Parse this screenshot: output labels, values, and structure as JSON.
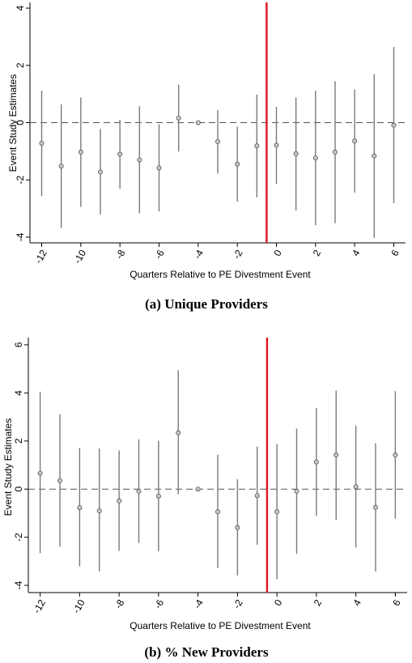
{
  "chart_data": [
    {
      "type": "scatter",
      "caption": "(a) Unique Providers",
      "xlabel": "Quarters Relative to PE Divestment Event",
      "ylabel": "Event Study Estimates",
      "xlim": [
        -12.6,
        6.6
      ],
      "ylim": [
        -4.2,
        4.2
      ],
      "xticks": [
        -12,
        -10,
        -8,
        -6,
        -4,
        -2,
        0,
        2,
        4,
        6
      ],
      "yticks": [
        -4,
        -2,
        0,
        2,
        4
      ],
      "grid": false,
      "zero_line": 0,
      "event_line_x": -0.5,
      "event_line_color": "#e0141c",
      "points": [
        {
          "x": -12,
          "y": -0.72,
          "lo": -2.56,
          "hi": 1.12
        },
        {
          "x": -11,
          "y": -1.52,
          "lo": -3.68,
          "hi": 0.64
        },
        {
          "x": -10,
          "y": -1.03,
          "lo": -2.94,
          "hi": 0.88
        },
        {
          "x": -9,
          "y": -1.72,
          "lo": -3.21,
          "hi": -0.22
        },
        {
          "x": -8,
          "y": -1.1,
          "lo": -2.31,
          "hi": 0.1
        },
        {
          "x": -7,
          "y": -1.3,
          "lo": -3.17,
          "hi": 0.57
        },
        {
          "x": -6,
          "y": -1.58,
          "lo": -3.1,
          "hi": -0.06
        },
        {
          "x": -5,
          "y": 0.16,
          "lo": -1.01,
          "hi": 1.33
        },
        {
          "x": -4,
          "y": 0.0,
          "lo": 0.0,
          "hi": 0.0
        },
        {
          "x": -3,
          "y": -0.66,
          "lo": -1.78,
          "hi": 0.44
        },
        {
          "x": -2,
          "y": -1.45,
          "lo": -2.76,
          "hi": -0.14
        },
        {
          "x": -1,
          "y": -0.81,
          "lo": -2.61,
          "hi": 0.98
        },
        {
          "x": 0,
          "y": -0.79,
          "lo": -2.14,
          "hi": 0.55
        },
        {
          "x": 1,
          "y": -1.09,
          "lo": -3.07,
          "hi": 0.88
        },
        {
          "x": 2,
          "y": -1.23,
          "lo": -3.58,
          "hi": 1.12
        },
        {
          "x": 3,
          "y": -1.03,
          "lo": -3.51,
          "hi": 1.45
        },
        {
          "x": 4,
          "y": -0.64,
          "lo": -2.44,
          "hi": 1.16
        },
        {
          "x": 5,
          "y": -1.16,
          "lo": -4.03,
          "hi": 1.7
        },
        {
          "x": 6,
          "y": -0.09,
          "lo": -2.81,
          "hi": 2.64
        }
      ]
    },
    {
      "type": "scatter",
      "caption": "(b) % New Providers",
      "xlabel": "Quarters Relative to PE Divestment Event",
      "ylabel": "Event Study Estimates",
      "xlim": [
        -12.6,
        6.6
      ],
      "ylim": [
        -4.3,
        6.3
      ],
      "xticks": [
        -12,
        -10,
        -8,
        -6,
        -4,
        -2,
        0,
        2,
        4,
        6
      ],
      "yticks": [
        -4,
        -2,
        0,
        2,
        4,
        6
      ],
      "grid": false,
      "zero_line": 0,
      "event_line_x": -0.5,
      "event_line_color": "#e0141c",
      "points": [
        {
          "x": -12,
          "y": 0.66,
          "lo": -2.66,
          "hi": 4.05
        },
        {
          "x": -11,
          "y": 0.35,
          "lo": -2.39,
          "hi": 3.11
        },
        {
          "x": -10,
          "y": -0.77,
          "lo": -3.21,
          "hi": 1.71
        },
        {
          "x": -9,
          "y": -0.9,
          "lo": -3.42,
          "hi": 1.69
        },
        {
          "x": -8,
          "y": -0.49,
          "lo": -2.57,
          "hi": 1.61
        },
        {
          "x": -7,
          "y": -0.09,
          "lo": -2.24,
          "hi": 2.07
        },
        {
          "x": -6,
          "y": -0.29,
          "lo": -2.58,
          "hi": 2.01
        },
        {
          "x": -5,
          "y": 2.34,
          "lo": -0.22,
          "hi": 4.94
        },
        {
          "x": -4,
          "y": 0.0,
          "lo": 0.0,
          "hi": 0.0
        },
        {
          "x": -3,
          "y": -0.94,
          "lo": -3.28,
          "hi": 1.43
        },
        {
          "x": -2,
          "y": -1.6,
          "lo": -3.59,
          "hi": 0.41
        },
        {
          "x": -1,
          "y": -0.27,
          "lo": -2.31,
          "hi": 1.77
        },
        {
          "x": 0,
          "y": -0.94,
          "lo": -3.75,
          "hi": 1.87
        },
        {
          "x": 1,
          "y": -0.09,
          "lo": -2.69,
          "hi": 2.52
        },
        {
          "x": 2,
          "y": 1.13,
          "lo": -1.11,
          "hi": 3.37
        },
        {
          "x": 3,
          "y": 1.42,
          "lo": -1.29,
          "hi": 4.1
        },
        {
          "x": 4,
          "y": 0.1,
          "lo": -2.43,
          "hi": 2.64
        },
        {
          "x": 5,
          "y": -0.76,
          "lo": -3.42,
          "hi": 1.91
        },
        {
          "x": 6,
          "y": 1.42,
          "lo": -1.23,
          "hi": 4.07
        }
      ]
    }
  ]
}
